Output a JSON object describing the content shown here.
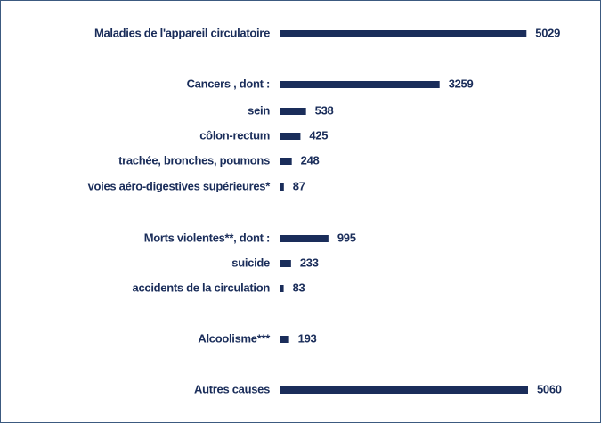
{
  "chart_data": {
    "type": "bar",
    "orientation": "horizontal",
    "color": "#1a2d5a",
    "categories": [
      "Maladies de l'appareil circulatoire",
      "Cancers , dont :",
      "sein",
      "côlon-rectum",
      "trachée, bronches, poumons",
      "voies aéro-digestives supérieures*",
      "Morts violentes**, dont :",
      "suicide",
      "accidents de la circulation",
      "Alcoolisme***",
      "Autres causes"
    ],
    "values": [
      5029,
      3259,
      538,
      425,
      248,
      87,
      995,
      233,
      83,
      193,
      5060
    ]
  }
}
